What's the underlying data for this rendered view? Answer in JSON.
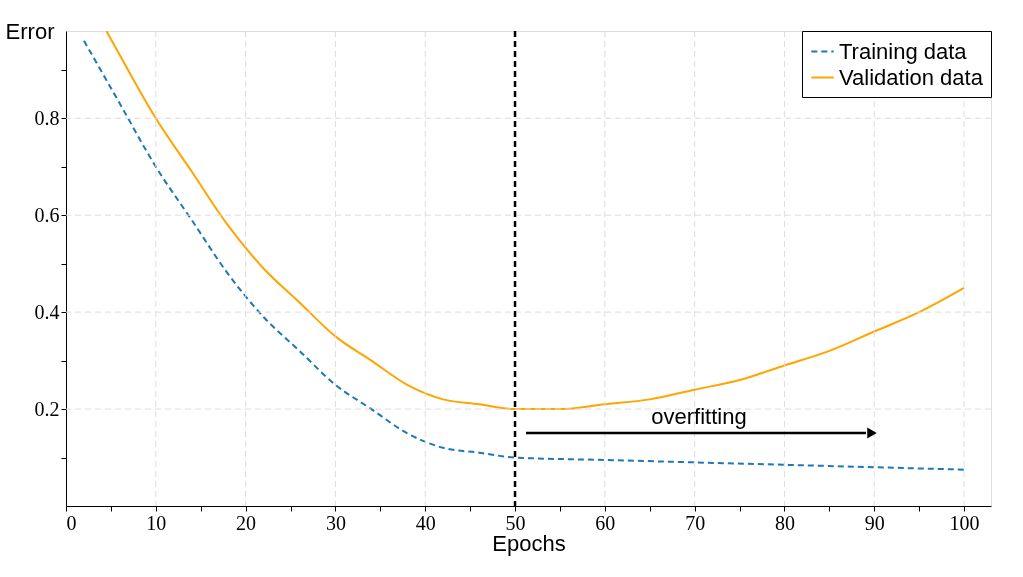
{
  "chart_data": {
    "type": "line",
    "xlabel": "Epochs",
    "ylabel": "Error",
    "xlim": [
      0,
      103
    ],
    "ylim": [
      0,
      0.98
    ],
    "xticks": [
      0,
      {
        "value": 5,
        "label": null
      },
      10,
      {
        "value": 15,
        "label": null
      },
      20,
      {
        "value": 25,
        "label": null
      },
      30,
      {
        "value": 35,
        "label": null
      },
      40,
      {
        "value": 45,
        "label": null
      },
      50,
      {
        "value": 55,
        "label": null
      },
      60,
      {
        "value": 65,
        "label": null
      },
      70,
      {
        "value": 75,
        "label": null
      },
      80,
      {
        "value": 85,
        "label": null
      },
      90,
      {
        "value": 95,
        "label": null
      },
      100
    ],
    "yticks": [
      {
        "value": 0.1,
        "label": null
      },
      0.2,
      {
        "value": 0.3,
        "label": null
      },
      0.4,
      {
        "value": 0.5,
        "label": null
      },
      0.6,
      {
        "value": 0.7,
        "label": null
      },
      0.8,
      {
        "value": 0.9,
        "label": null
      }
    ],
    "grid": true,
    "legend": "top right",
    "marker": "none",
    "series": [
      {
        "name": "Training data",
        "color": "#1f77b4",
        "line_style": "dashed",
        "x": [
          2,
          6,
          10,
          14,
          18,
          22,
          26,
          30,
          34,
          38,
          42,
          46,
          50,
          60,
          70,
          80,
          90,
          100
        ],
        "values": [
          0.96,
          0.83,
          0.7,
          0.59,
          0.48,
          0.39,
          0.32,
          0.25,
          0.2,
          0.15,
          0.12,
          0.11,
          0.1,
          0.095,
          0.09,
          0.085,
          0.08,
          0.075
        ]
      },
      {
        "name": "Validation data",
        "color": "#ffa500",
        "line_style": "solid",
        "x": [
          4.5,
          6,
          10,
          14,
          18,
          22,
          26,
          30,
          34,
          38,
          42,
          46,
          50,
          55,
          60,
          65,
          70,
          75,
          80,
          85,
          90,
          95,
          100
        ],
        "values": [
          0.98,
          0.93,
          0.8,
          0.69,
          0.58,
          0.49,
          0.42,
          0.35,
          0.3,
          0.25,
          0.22,
          0.21,
          0.2,
          0.2,
          0.21,
          0.22,
          0.24,
          0.26,
          0.29,
          0.32,
          0.36,
          0.4,
          0.45
        ]
      }
    ],
    "ref_lines": [
      {
        "axis": "x",
        "value": 50,
        "line_style": "dashed",
        "color": "#000000"
      }
    ],
    "annotations": [
      "overfitting"
    ]
  }
}
